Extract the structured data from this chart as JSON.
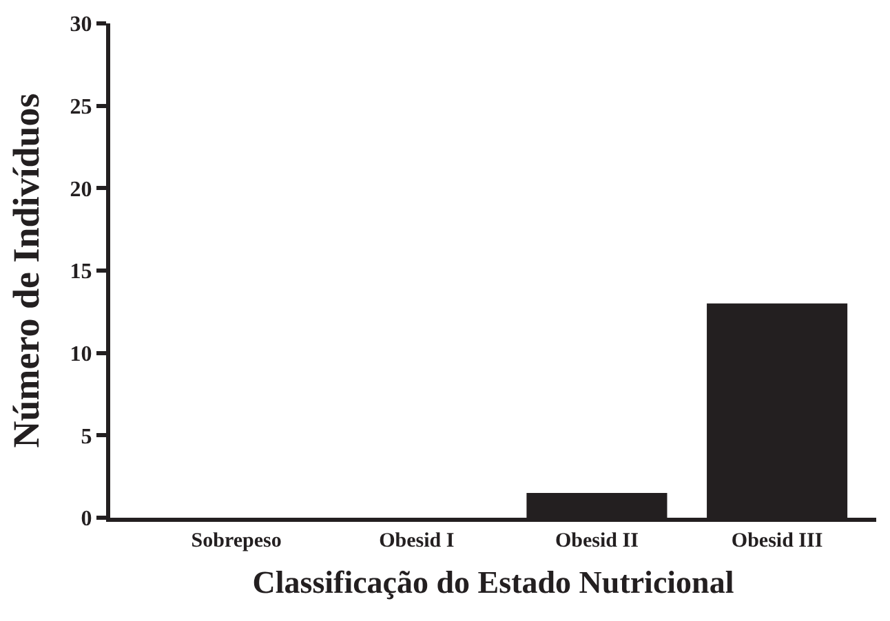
{
  "chart_data": {
    "type": "bar",
    "xlabel": "Classificação do Estado Nutricional",
    "ylabel": "Número de Indivíduos",
    "categories": [
      "Sobrepeso",
      "Obesid I",
      "Obesid II",
      "Obesid III"
    ],
    "values": [
      0,
      0,
      1.5,
      13
    ],
    "color": "#231f20",
    "ylim": [
      0,
      30
    ],
    "yticks": [
      0,
      5,
      10,
      15,
      20,
      25,
      30
    ]
  }
}
